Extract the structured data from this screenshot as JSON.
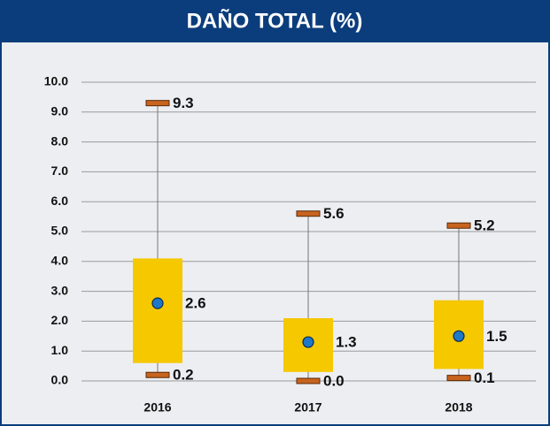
{
  "chart_data": {
    "type": "box",
    "title": "DAÑO TOTAL (%)",
    "categories": [
      "2016",
      "2017",
      "2018"
    ],
    "min": {
      "values": [
        0.2,
        0,
        0.1
      ],
      "value_labels": [
        "0.2",
        "0.0",
        "0.1"
      ]
    },
    "q1": {
      "values": [
        0.6,
        0.3,
        0.4
      ]
    },
    "q3": {
      "values": [
        4.1,
        2.1,
        2.7
      ]
    },
    "max": {
      "values": [
        9.3,
        5.6,
        5.2
      ],
      "value_labels": [
        "9.3",
        "5.6",
        "5.2"
      ]
    },
    "mean": {
      "values": [
        2.6,
        1.3,
        1.5
      ],
      "value_labels": [
        "2.6",
        "1.3",
        "1.5"
      ]
    },
    "box_color": "#f5c800",
    "cap_color": "#c8641e",
    "mean_color": "#1f78c8",
    "whisker_color": "#777777",
    "ylim": [
      0,
      10
    ],
    "yticks": [
      {
        "value": 0,
        "label": "0.0"
      },
      {
        "value": 1,
        "label": "1.0"
      },
      {
        "value": 2,
        "label": "2.0"
      },
      {
        "value": 3,
        "label": "3.0"
      },
      {
        "value": 4,
        "label": "4.0"
      },
      {
        "value": 5,
        "label": "5.0"
      },
      {
        "value": 6,
        "label": "6.0"
      },
      {
        "value": 7,
        "label": "7.0"
      },
      {
        "value": 8,
        "label": "8.0"
      },
      {
        "value": 9,
        "label": "9.0"
      },
      {
        "value": 10,
        "label": "10.0"
      }
    ],
    "grid": true
  }
}
